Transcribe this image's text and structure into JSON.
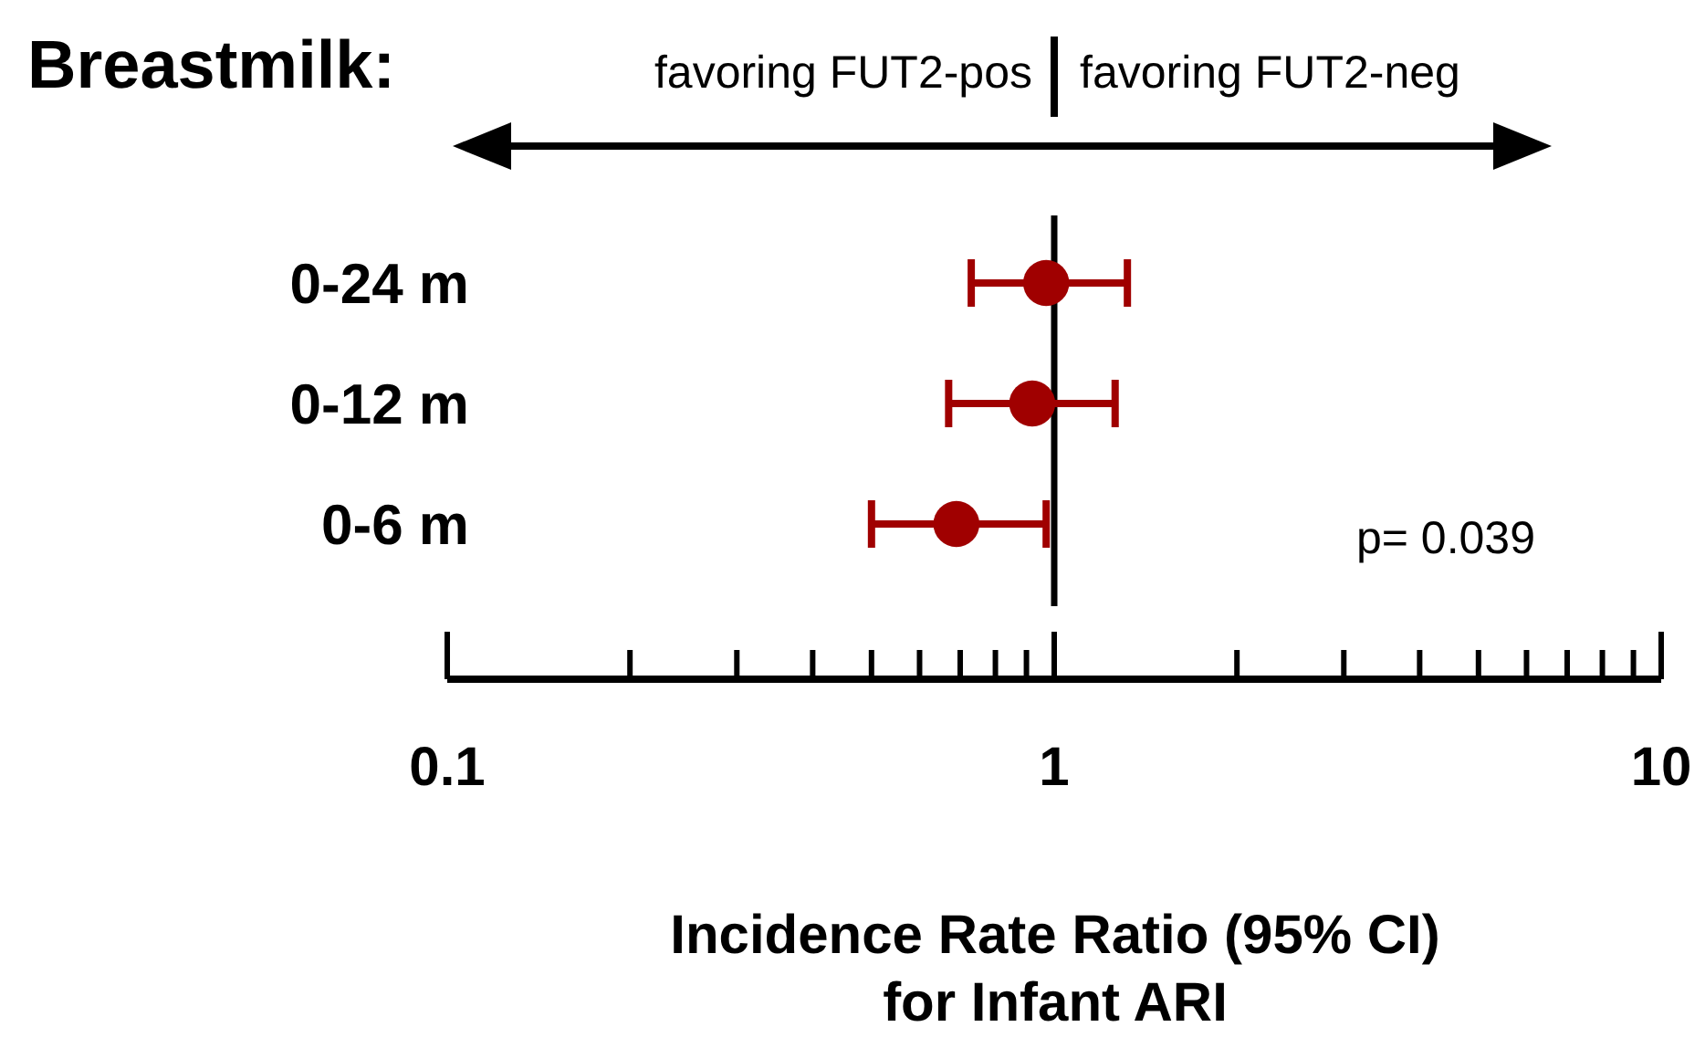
{
  "chart_data": {
    "type": "scatter",
    "orientation": "horizontal",
    "title": "Breastmilk:",
    "xlabel": "Incidence Rate Ratio (95% CI)\nfor Infant ARI",
    "categories": [
      "0-24 m",
      "0-12 m",
      "0-6 m"
    ],
    "series": [
      {
        "color": "#a00000",
        "values": [
          0.97,
          0.92,
          0.69
        ],
        "errors": [
          [
            0.73,
            1.32
          ],
          [
            0.67,
            1.26
          ],
          [
            0.5,
            0.97
          ]
        ]
      }
    ],
    "marker": "circle",
    "log": "x",
    "xlim": [
      0.1,
      10
    ],
    "xticks": [
      0.1,
      1,
      10
    ],
    "grid": false,
    "ref_lines": [
      {
        "axis": "x",
        "value": 1,
        "color": "#000000"
      }
    ],
    "annotations": [
      "favoring FUT2-pos",
      "favoring FUT2-neg",
      "p= 0.039"
    ]
  }
}
